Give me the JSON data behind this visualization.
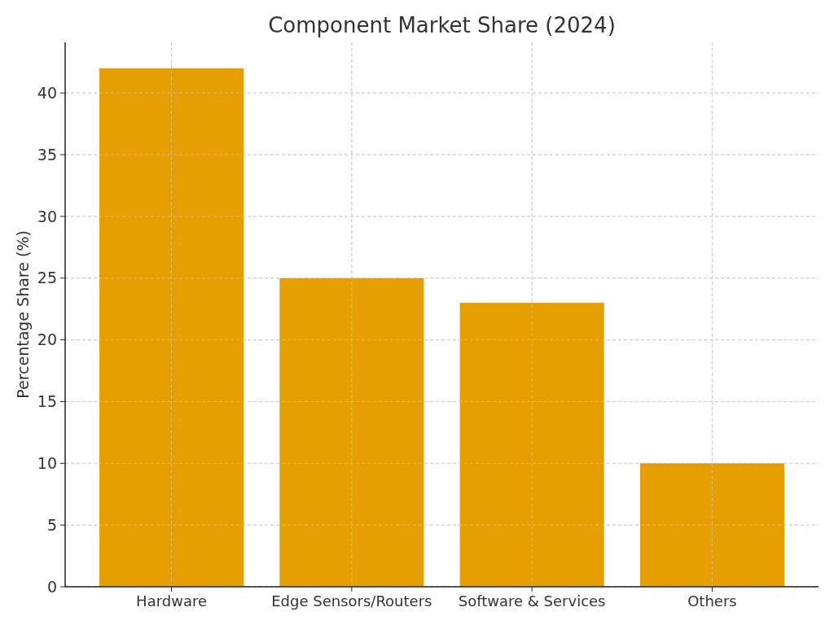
{
  "chart_data": {
    "type": "bar",
    "title": "Component Market Share (2024)",
    "ylabel": "Percentage Share (%)",
    "categories": [
      "Hardware",
      "Edge Sensors/Routers",
      "Software & Services",
      "Others"
    ],
    "values": [
      42,
      25,
      23,
      10
    ],
    "color": "#e69f00",
    "ylim": [
      0,
      44.1
    ],
    "yticks": [
      0,
      5,
      10,
      15,
      20,
      25,
      30,
      35,
      40
    ],
    "grid": true
  }
}
